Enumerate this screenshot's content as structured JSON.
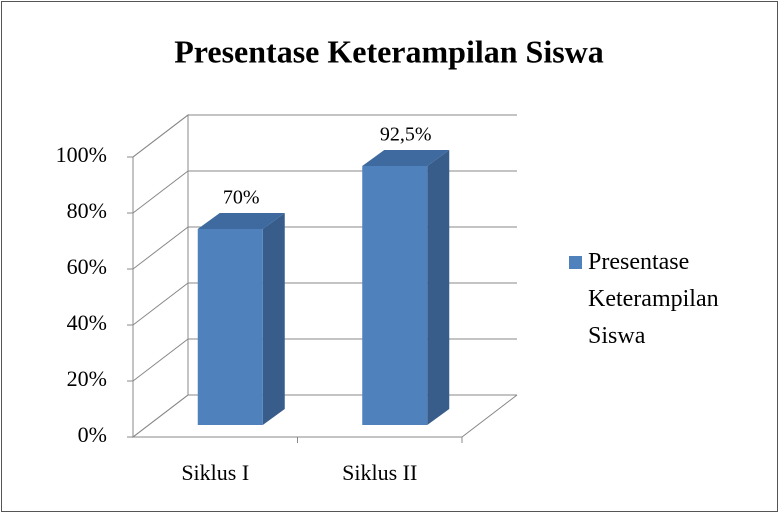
{
  "chart_data": {
    "type": "bar3d",
    "title": "Presentase Keterampilan Siswa",
    "categories": [
      "Siklus I",
      "Siklus II"
    ],
    "series": [
      {
        "name": "Presentase Keterampilan Siswa",
        "color": "#4f81bd",
        "values": [
          70,
          92.5
        ],
        "value_labels": [
          "70%",
          "92,5%"
        ]
      }
    ],
    "ylim": [
      0,
      100
    ],
    "yticks": [
      {
        "value": 0,
        "label": "0%"
      },
      {
        "value": 20,
        "label": "20%"
      },
      {
        "value": 40,
        "label": "40%"
      },
      {
        "value": 60,
        "label": "60%"
      },
      {
        "value": 80,
        "label": "80%"
      },
      {
        "value": 100,
        "label": "100%"
      }
    ],
    "grid": true,
    "legend": "right"
  }
}
